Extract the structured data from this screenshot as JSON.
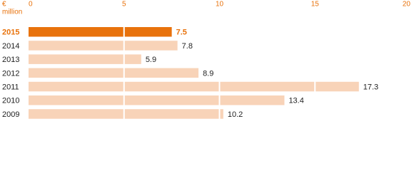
{
  "chart_data": {
    "type": "hbar",
    "xlabel": [
      "€",
      "million"
    ],
    "categories": [
      "2015",
      "2014",
      "2013",
      "2012",
      "2011",
      "2010",
      "2009"
    ],
    "values": [
      7.5,
      7.8,
      5.9,
      8.9,
      17.3,
      13.4,
      10.2
    ],
    "color": "#f8d3b8",
    "highlight": "2015",
    "highlight_color": "#e8720c",
    "xlim": [
      0,
      20
    ],
    "xticks": [
      0,
      5,
      10,
      15,
      20
    ],
    "grid": true
  }
}
